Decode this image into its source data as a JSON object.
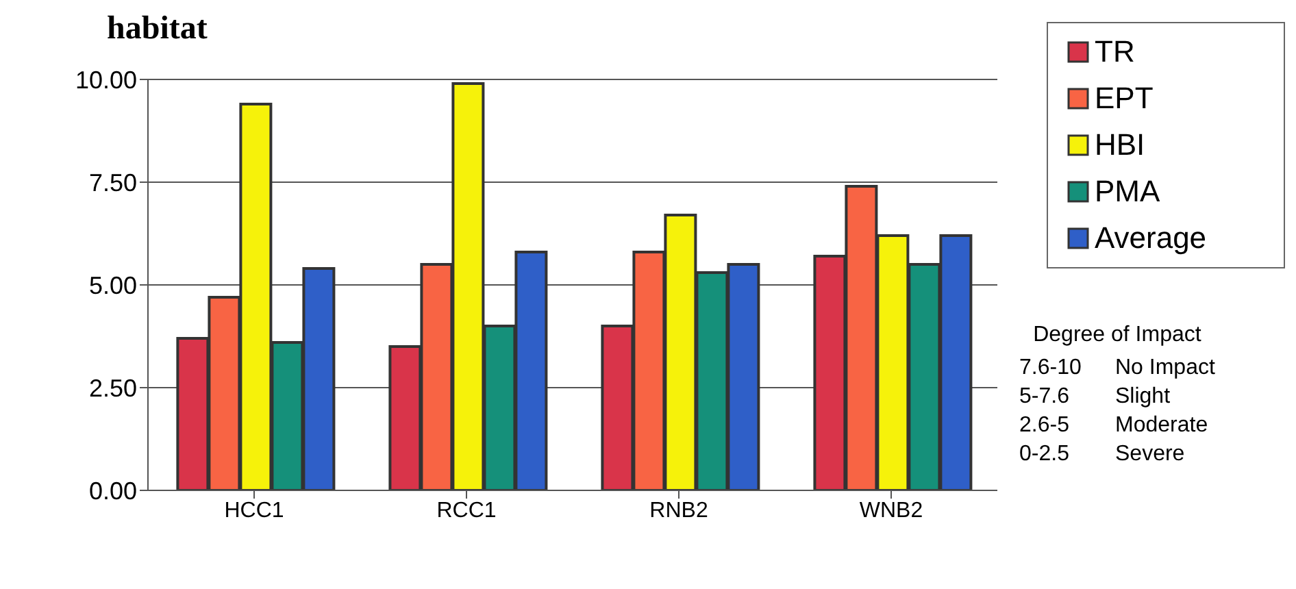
{
  "chart_data": {
    "type": "bar",
    "title": "habitat",
    "categories": [
      "HCC1",
      "RCC1",
      "RNB2",
      "WNB2"
    ],
    "series": [
      {
        "name": "TR",
        "color": "#d9344a",
        "values": [
          3.7,
          3.5,
          4.0,
          5.7
        ]
      },
      {
        "name": "EPT",
        "color": "#f86444",
        "values": [
          4.7,
          5.5,
          5.8,
          7.4
        ]
      },
      {
        "name": "HBI",
        "color": "#f6f20a",
        "values": [
          9.4,
          9.9,
          6.7,
          6.2
        ]
      },
      {
        "name": "PMA",
        "color": "#15907a",
        "values": [
          3.6,
          4.0,
          5.3,
          5.5
        ]
      },
      {
        "name": "Average",
        "color": "#2f5fc8",
        "values": [
          5.4,
          5.8,
          5.5,
          6.2
        ]
      }
    ],
    "ylim": [
      0,
      10
    ],
    "yticks": [
      {
        "value": 0,
        "label": "0.00"
      },
      {
        "value": 2.5,
        "label": "2.50"
      },
      {
        "value": 5,
        "label": "5.00"
      },
      {
        "value": 7.5,
        "label": "7.50"
      },
      {
        "value": 10,
        "label": "10.00"
      }
    ],
    "grid": "y",
    "legend": "top right",
    "annotations": [
      "Degree of Impact",
      "7.6-10",
      "No Impact",
      "5-7.6",
      "Slight",
      "2.6-5",
      "Moderate",
      "0-2.5",
      "Severe"
    ]
  }
}
